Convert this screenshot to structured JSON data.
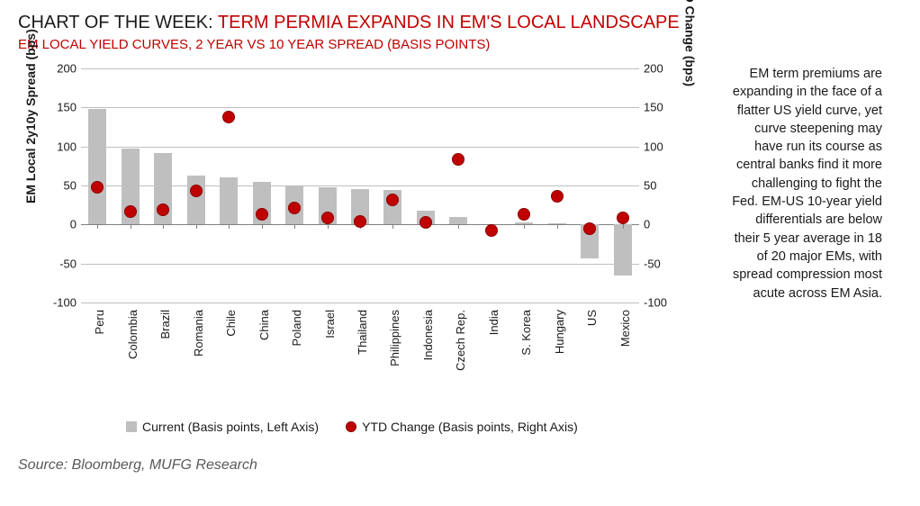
{
  "title": {
    "prefix": "CHART OF THE WEEK: ",
    "main": "TERM PERMIA EXPANDS IN EM'S LOCAL LANDSCAPE"
  },
  "subtitle": "EM LOCAL YIELD CURVES, 2 YEAR VS 10 YEAR SPREAD (BASIS POINTS)",
  "sidebar_text": "EM term premiums are expanding in the face of a flatter US yield curve, yet curve steepening may have run its course as central banks find it more challenging to fight the Fed. EM-US 10-year yield differentials are below their 5 year average in 18 of 20 major EMs, with spread compression most acute across EM Asia.",
  "source": "Source: Bloomberg, MUFG Research",
  "chart": {
    "type": "bar+scatter",
    "y_axis_left_label": "EM Local 2y10y Spread (bps)",
    "y_axis_right_label": "YTD Change (bps)",
    "ylim": [
      -100,
      200
    ],
    "ytick_step": 50,
    "yticks": [
      -100,
      -50,
      0,
      50,
      100,
      150,
      200
    ],
    "bar_color": "#bfbfbf",
    "dot_fill": "#c00000",
    "dot_border": "#8b0000",
    "grid_color": "#bfbfbf",
    "background_color": "#ffffff",
    "bar_width_ratio": 0.55,
    "categories": [
      "Peru",
      "Colombia",
      "Brazil",
      "Romania",
      "Chile",
      "China",
      "Poland",
      "Israel",
      "Thailand",
      "Philippines",
      "Indonesia",
      "Czech Rep.",
      "India",
      "S. Korea",
      "Hungary",
      "US",
      "Mexico"
    ],
    "bar_values": [
      148,
      97,
      92,
      63,
      60,
      55,
      50,
      48,
      45,
      44,
      18,
      10,
      0,
      3,
      2,
      -43,
      -65
    ],
    "dot_values": [
      48,
      17,
      19,
      43,
      138,
      13,
      21,
      8,
      4,
      32,
      3,
      83,
      -8,
      13,
      36,
      -5,
      9
    ],
    "legend": {
      "bar_label": "Current (Basis points, Left Axis)",
      "dot_label": "YTD Change (Basis points, Right Axis)"
    },
    "title_fontsize": 20,
    "subtitle_fontsize": 15,
    "axis_label_fontsize": 14,
    "tick_fontsize": 13,
    "legend_fontsize": 14,
    "sidebar_fontsize": 14.5
  }
}
